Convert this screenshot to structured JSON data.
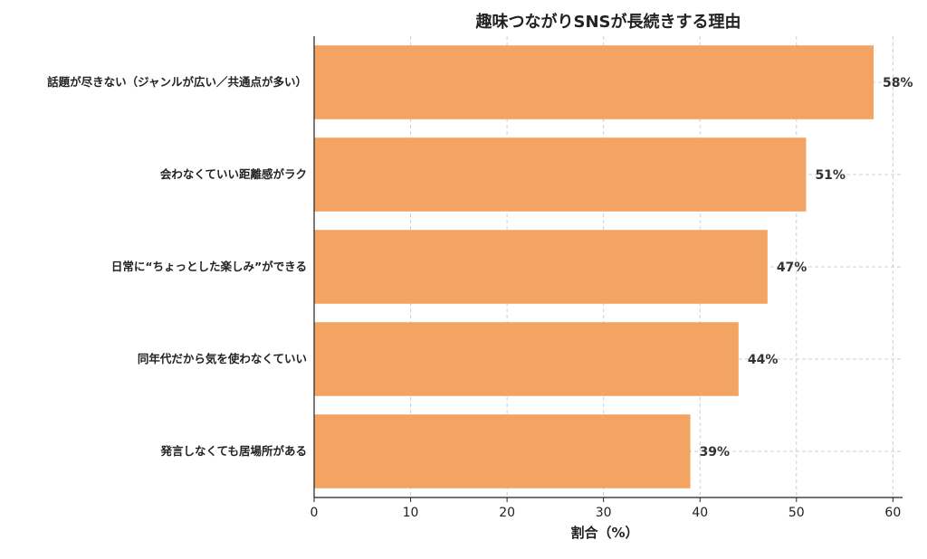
{
  "chart_data": {
    "type": "bar",
    "orientation": "horizontal",
    "title": "趣味つながりSNSが長続きする理由",
    "xlabel": "割合（%）",
    "ylabel": "",
    "xlim": [
      0,
      61
    ],
    "xticks": [
      0,
      10,
      20,
      30,
      40,
      50,
      60
    ],
    "grid": true,
    "bar_color": "#F4A462",
    "categories": [
      "話題が尽きない（ジャンルが広い／共通点が多い）",
      "会わなくていい距離感がラク",
      "日常に“ちょっとした楽しみ”ができる",
      "同年代だから気を使わなくていい",
      "発言しなくても居場所がある"
    ],
    "values": [
      58,
      51,
      47,
      44,
      39
    ],
    "data_labels": [
      "58%",
      "51%",
      "47%",
      "44%",
      "39%"
    ]
  }
}
